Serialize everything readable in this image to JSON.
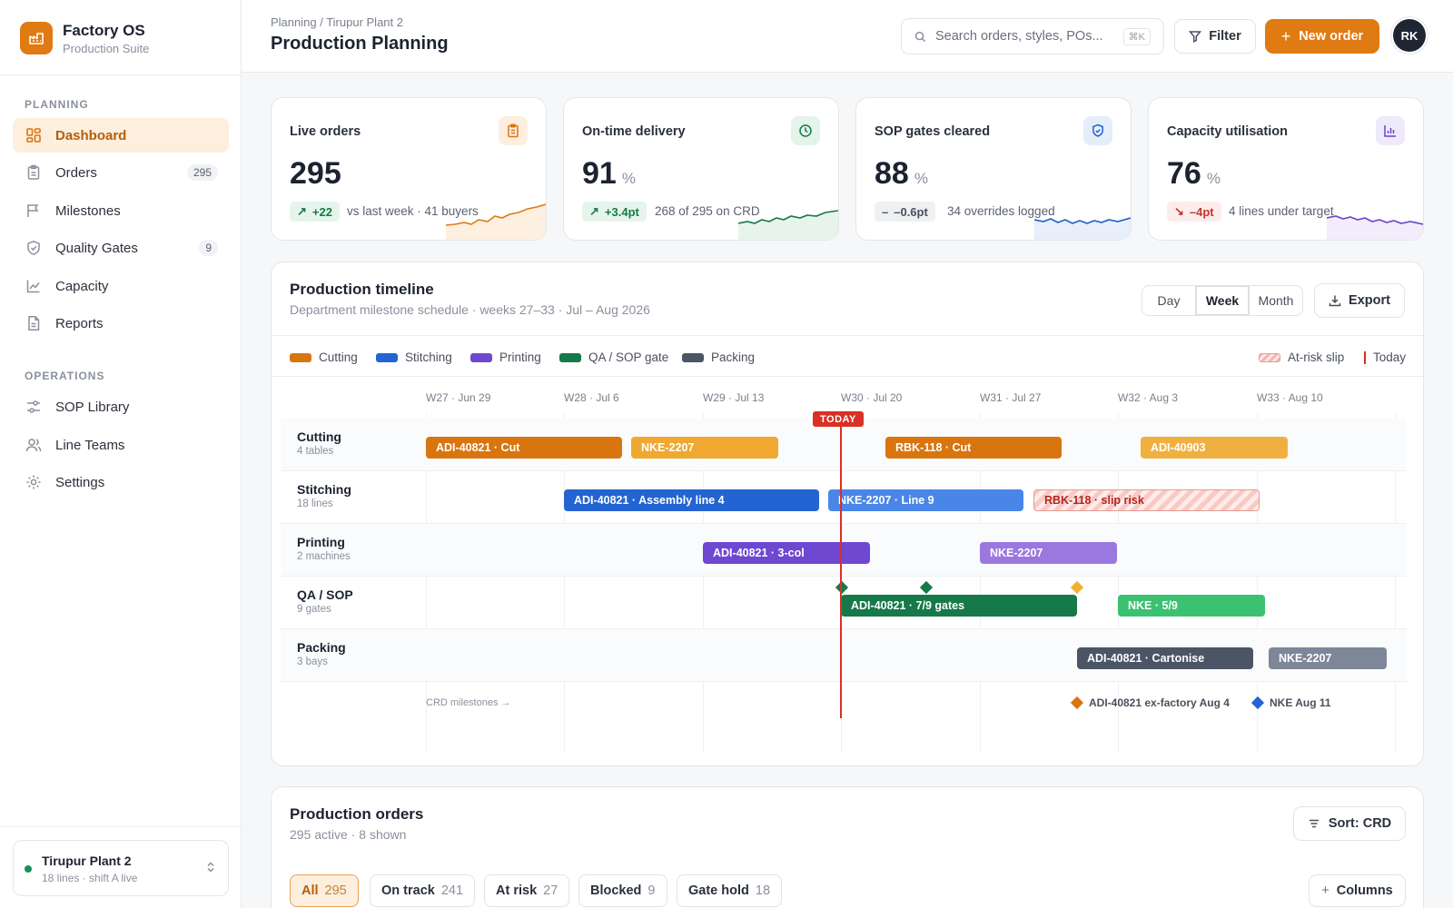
{
  "brand": {
    "name": "Factory OS",
    "subtitle": "Production Suite"
  },
  "nav": {
    "planning_label": "PLANNING",
    "operations_label": "OPERATIONS",
    "items": [
      {
        "label": "Dashboard",
        "icon": "grid-icon",
        "active": true
      },
      {
        "label": "Orders",
        "icon": "clipboard-icon",
        "count": "295"
      },
      {
        "label": "Milestones",
        "icon": "flag-icon"
      },
      {
        "label": "Quality Gates",
        "icon": "shield-icon",
        "count": "9"
      },
      {
        "label": "Capacity",
        "icon": "chart-icon"
      },
      {
        "label": "Reports",
        "icon": "document-icon"
      }
    ],
    "ops_items": [
      {
        "label": "SOP Library",
        "icon": "sliders-icon"
      },
      {
        "label": "Line Teams",
        "icon": "users-icon"
      },
      {
        "label": "Settings",
        "icon": "gear-icon"
      }
    ]
  },
  "plant": {
    "name": "Tirupur Plant 2",
    "detail": "18 lines · shift A live"
  },
  "header": {
    "breadcrumb": "Planning / Tirupur Plant 2",
    "title": "Production Planning",
    "search_placeholder": "Search orders, styles, POs...",
    "search_shortcut": "⌘K",
    "filter_label": "Filter",
    "new_order_label": "New order",
    "avatar_initials": "RK"
  },
  "kpis": [
    {
      "label": "Live orders",
      "value": "295",
      "unit": "",
      "delta": "+22",
      "note": "vs last week · 41 buyers",
      "tone": "up",
      "color": "#e07a12",
      "icon": "clipboard-icon"
    },
    {
      "label": "On-time delivery",
      "value": "91",
      "unit": "%",
      "delta": "+3.4pt",
      "note": "268 of 295 on CRD",
      "tone": "up",
      "color": "#16794a",
      "icon": "clock-icon"
    },
    {
      "label": "SOP gates cleared",
      "value": "88",
      "unit": "%",
      "delta": "–0.6pt",
      "note": "34 overrides logged",
      "tone": "flat",
      "color": "#2060c8",
      "icon": "shield-check-icon"
    },
    {
      "label": "Capacity utilisation",
      "value": "76",
      "unit": "%",
      "delta": "–4pt",
      "note": "4 lines under target",
      "tone": "down",
      "color": "#6a44c8",
      "icon": "bar-chart-icon"
    }
  ],
  "timeline": {
    "title": "Production timeline",
    "subtitle": "Department milestone schedule · weeks 27–33 · Jul – Aug 2026",
    "views": [
      "Day",
      "Week",
      "Month"
    ],
    "active_view": "Week",
    "export_label": "Export",
    "legend": [
      {
        "label": "Cutting",
        "color": "#d9750f"
      },
      {
        "label": "Stitching",
        "color": "#2364d2"
      },
      {
        "label": "Printing",
        "color": "#6e48d0"
      },
      {
        "label": "QA / SOP gate",
        "color": "#16794a"
      },
      {
        "label": "Packing",
        "color": "#4b5566"
      }
    ],
    "at_risk_label": "At-risk slip",
    "today_label": "Today",
    "today_tag": "TODAY",
    "weeks": [
      "W27 · Jun 29",
      "W28 · Jul 6",
      "W29 · Jul 13",
      "W30 · Jul 20",
      "W31 · Jul 27",
      "W32 · Aug 3",
      "W33 · Aug 10"
    ],
    "lanes": [
      {
        "name": "Cutting",
        "sub": "4 tables"
      },
      {
        "name": "Stitching",
        "sub": "18 lines"
      },
      {
        "name": "Printing",
        "sub": "2 machines"
      },
      {
        "name": "QA / SOP",
        "sub": "9 gates"
      },
      {
        "name": "Packing",
        "sub": "3 bays"
      }
    ],
    "bars": [
      {
        "label": "ADI-40821 · Cut",
        "lane": 0,
        "color": "#d9750f"
      },
      {
        "label": "NKE-2207",
        "lane": 0,
        "color": "#f0a830"
      },
      {
        "label": "RBK-118 · Cut",
        "lane": 0,
        "color": "#d9750f"
      },
      {
        "label": "ADI-40903",
        "lane": 0,
        "color": "#f0b040"
      },
      {
        "label": "ADI-40821 · Assembly line 4",
        "lane": 1,
        "color": "#2364d2"
      },
      {
        "label": "NKE-2207 · Line 9",
        "lane": 1,
        "color": "#4a86e8"
      },
      {
        "label": "RBK-118 · slip risk",
        "lane": 1,
        "color": "risk"
      },
      {
        "label": "ADI-40821 · 3-col",
        "lane": 2,
        "color": "#6e48d0"
      },
      {
        "label": "NKE-2207",
        "lane": 2,
        "color": "#9a78e0"
      },
      {
        "label": "ADI-40821 · 7/9 gates",
        "lane": 3,
        "color": "#16794a"
      },
      {
        "label": "NKE · 5/9",
        "lane": 3,
        "color": "#3cc172"
      },
      {
        "label": "ADI-40821 · Cartonise",
        "lane": 4,
        "color": "#4b5566"
      },
      {
        "label": "NKE-2207",
        "lane": 4,
        "color": "#7e8797"
      }
    ],
    "crd_label": "CRD milestones →",
    "crd_milestones": [
      {
        "label": "ADI-40821 ex-factory Aug 4",
        "color": "#d9750f"
      },
      {
        "label": "NKE Aug 11",
        "color": "#2364d2"
      }
    ]
  },
  "orders": {
    "title": "Production orders",
    "subtitle": "295 active · 8 shown",
    "sort_label": "Sort: CRD",
    "columns_label": "Columns",
    "filters": [
      {
        "label": "All",
        "count": "295",
        "active": true
      },
      {
        "label": "On track",
        "count": "241"
      },
      {
        "label": "At risk",
        "count": "27"
      },
      {
        "label": "Blocked",
        "count": "9"
      },
      {
        "label": "Gate hold",
        "count": "18"
      }
    ]
  }
}
